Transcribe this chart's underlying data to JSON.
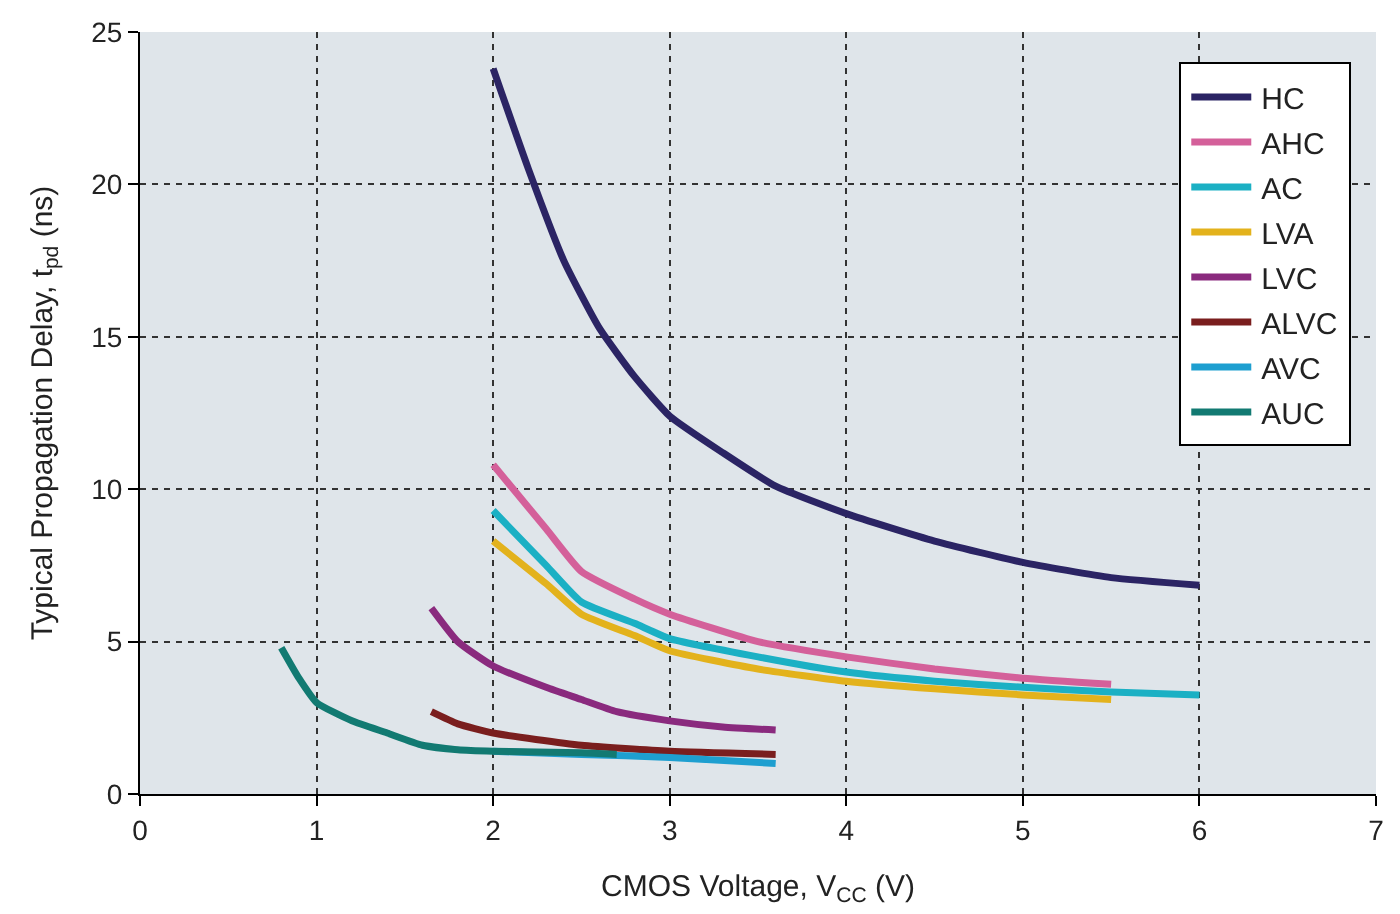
{
  "chart_data": {
    "type": "line",
    "xlabel": "CMOS Voltage, V$_{CC}$ (V)",
    "ylabel": "Typical Propagation Delay, t$_{pd}$ (ns)",
    "xlim": [
      0,
      7
    ],
    "xticks": [
      0,
      1,
      2,
      3,
      4,
      5,
      6,
      7
    ],
    "ylim": [
      0,
      25
    ],
    "yticks": [
      0,
      5,
      10,
      15,
      20,
      25
    ],
    "grid": true,
    "legend": "top right",
    "marker": "none",
    "line_style": "solid",
    "series": [
      {
        "name": "HC",
        "color": "#2b2464",
        "x": [
          2,
          2.2,
          2.4,
          2.6,
          2.8,
          3,
          3.3,
          3.6,
          4,
          4.5,
          5,
          5.5,
          6
        ],
        "values": [
          23.8,
          20.5,
          17.5,
          15.3,
          13.7,
          12.4,
          11.2,
          10.1,
          9.2,
          8.3,
          7.6,
          7.1,
          6.85
        ]
      },
      {
        "name": "AHC",
        "color": "#d4609a",
        "x": [
          2,
          2.3,
          2.5,
          2.8,
          3,
          3.5,
          4,
          4.5,
          5,
          5.5
        ],
        "values": [
          10.8,
          8.7,
          7.3,
          6.4,
          5.9,
          5.0,
          4.5,
          4.1,
          3.8,
          3.6
        ]
      },
      {
        "name": "AC",
        "color": "#1bb0c4",
        "x": [
          2,
          2.3,
          2.5,
          2.8,
          3,
          3.5,
          4,
          4.5,
          5,
          5.5,
          6
        ],
        "values": [
          9.3,
          7.5,
          6.3,
          5.6,
          5.1,
          4.5,
          4.0,
          3.7,
          3.5,
          3.35,
          3.25
        ]
      },
      {
        "name": "LVA",
        "color": "#e3b21c",
        "x": [
          2,
          2.3,
          2.5,
          2.8,
          3,
          3.5,
          4,
          4.5,
          5,
          5.5
        ],
        "values": [
          8.3,
          6.9,
          5.9,
          5.2,
          4.7,
          4.1,
          3.7,
          3.45,
          3.25,
          3.1
        ]
      },
      {
        "name": "LVC",
        "color": "#8a2a7e",
        "x": [
          1.65,
          1.8,
          2,
          2.3,
          2.5,
          2.7,
          3,
          3.3,
          3.6
        ],
        "values": [
          6.1,
          5.0,
          4.2,
          3.5,
          3.1,
          2.7,
          2.4,
          2.2,
          2.1
        ]
      },
      {
        "name": "ALVC",
        "color": "#7a1e1e",
        "x": [
          1.65,
          1.8,
          2,
          2.5,
          3,
          3.6
        ],
        "values": [
          2.7,
          2.3,
          2.0,
          1.6,
          1.4,
          1.3
        ]
      },
      {
        "name": "AVC",
        "color": "#1e9fd0",
        "x": [
          2,
          2.5,
          3,
          3.6
        ],
        "values": [
          1.4,
          1.3,
          1.2,
          1.0
        ]
      },
      {
        "name": "AUC",
        "color": "#127a72",
        "x": [
          0.8,
          0.9,
          1,
          1.2,
          1.4,
          1.6,
          1.8,
          2,
          2.5,
          2.7
        ],
        "values": [
          4.8,
          3.8,
          3.0,
          2.4,
          2.0,
          1.6,
          1.45,
          1.4,
          1.35,
          1.3
        ]
      }
    ]
  }
}
